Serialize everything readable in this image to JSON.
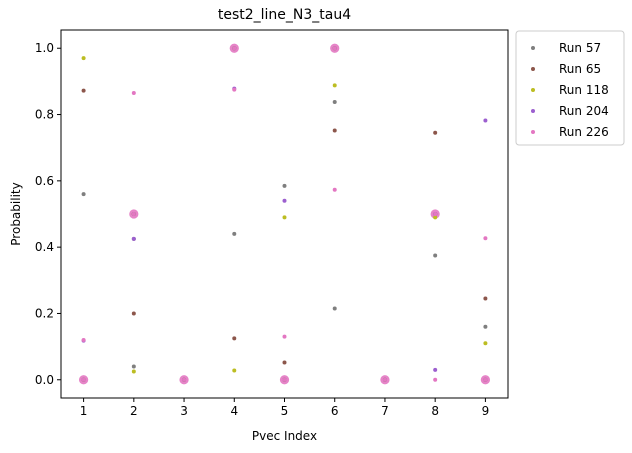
{
  "chart_data": {
    "type": "scatter",
    "title": "test2_line_N3_tau4",
    "xlabel": "Pvec Index",
    "ylabel": "Probability",
    "xlim": [
      0.55,
      9.45
    ],
    "ylim": [
      -0.055,
      1.055
    ],
    "x_ticks": [
      "1",
      "2",
      "3",
      "4",
      "5",
      "6",
      "7",
      "8",
      "9"
    ],
    "y_ticks": [
      "0.0",
      "0.2",
      "0.4",
      "0.6",
      "0.8",
      "1.0"
    ],
    "legend_position": "outside-top-right",
    "grid": false,
    "series": [
      {
        "name": "Run 57",
        "color": "#7f7f7f",
        "points": [
          [
            1,
            0.56
          ],
          [
            1,
            0.0
          ],
          [
            2,
            0.5
          ],
          [
            2,
            0.425
          ],
          [
            2,
            0.04
          ],
          [
            3,
            0.0
          ],
          [
            4,
            1.0
          ],
          [
            4,
            0.44
          ],
          [
            5,
            0.585
          ],
          [
            5,
            0.0
          ],
          [
            6,
            1.0
          ],
          [
            6,
            0.838
          ],
          [
            6,
            0.215
          ],
          [
            7,
            0.0
          ],
          [
            8,
            0.5
          ],
          [
            8,
            0.375
          ],
          [
            9,
            0.16
          ],
          [
            9,
            0.0
          ]
        ]
      },
      {
        "name": "Run 65",
        "color": "#8c564b",
        "points": [
          [
            1,
            0.872
          ],
          [
            1,
            0.0
          ],
          [
            2,
            0.5
          ],
          [
            2,
            0.2
          ],
          [
            3,
            0.0
          ],
          [
            4,
            1.0
          ],
          [
            4,
            0.125
          ],
          [
            5,
            0.052
          ],
          [
            5,
            0.0
          ],
          [
            6,
            1.0
          ],
          [
            6,
            0.752
          ],
          [
            7,
            0.0
          ],
          [
            8,
            0.745
          ],
          [
            8,
            0.5
          ],
          [
            9,
            0.245
          ],
          [
            9,
            0.0
          ]
        ]
      },
      {
        "name": "Run 118",
        "color": "#bcbd22",
        "points": [
          [
            1,
            0.97
          ],
          [
            1,
            0.0
          ],
          [
            2,
            0.5
          ],
          [
            2,
            0.025
          ],
          [
            3,
            0.0
          ],
          [
            4,
            1.0
          ],
          [
            4,
            0.028
          ],
          [
            5,
            0.49
          ],
          [
            5,
            0.0
          ],
          [
            6,
            1.0
          ],
          [
            6,
            0.888
          ],
          [
            7,
            0.0
          ],
          [
            8,
            0.49
          ],
          [
            9,
            0.11
          ],
          [
            9,
            0.0
          ]
        ]
      },
      {
        "name": "Run 204",
        "color": "#9c5fcf",
        "points": [
          [
            1,
            0.118
          ],
          [
            1,
            0.0
          ],
          [
            2,
            0.5
          ],
          [
            2,
            0.425
          ],
          [
            3,
            0.0
          ],
          [
            4,
            1.0
          ],
          [
            4,
            0.878
          ],
          [
            5,
            0.54
          ],
          [
            5,
            0.0
          ],
          [
            6,
            1.0
          ],
          [
            7,
            0.0
          ],
          [
            8,
            0.5
          ],
          [
            8,
            0.03
          ],
          [
            9,
            0.782
          ],
          [
            9,
            0.0
          ]
        ]
      },
      {
        "name": "Run 226",
        "color": "#e377c2",
        "points": [
          [
            1,
            0.12
          ],
          [
            1,
            0.0
          ],
          [
            2,
            0.865
          ],
          [
            2,
            0.5
          ],
          [
            3,
            0.0
          ],
          [
            4,
            1.0
          ],
          [
            4,
            0.875
          ],
          [
            5,
            0.13
          ],
          [
            5,
            0.0
          ],
          [
            6,
            1.0
          ],
          [
            6,
            0.573
          ],
          [
            7,
            0.0
          ],
          [
            8,
            0.5
          ],
          [
            8,
            0.0
          ],
          [
            9,
            0.427
          ],
          [
            9,
            0.0
          ]
        ]
      }
    ],
    "large_points": [
      [
        1,
        0.0
      ],
      [
        2,
        0.5
      ],
      [
        3,
        0.0
      ],
      [
        4,
        1.0
      ],
      [
        5,
        0.0
      ],
      [
        6,
        1.0
      ],
      [
        7,
        0.0
      ],
      [
        8,
        0.5
      ],
      [
        9,
        0.0
      ]
    ],
    "large_points_color": "#e377c2"
  }
}
